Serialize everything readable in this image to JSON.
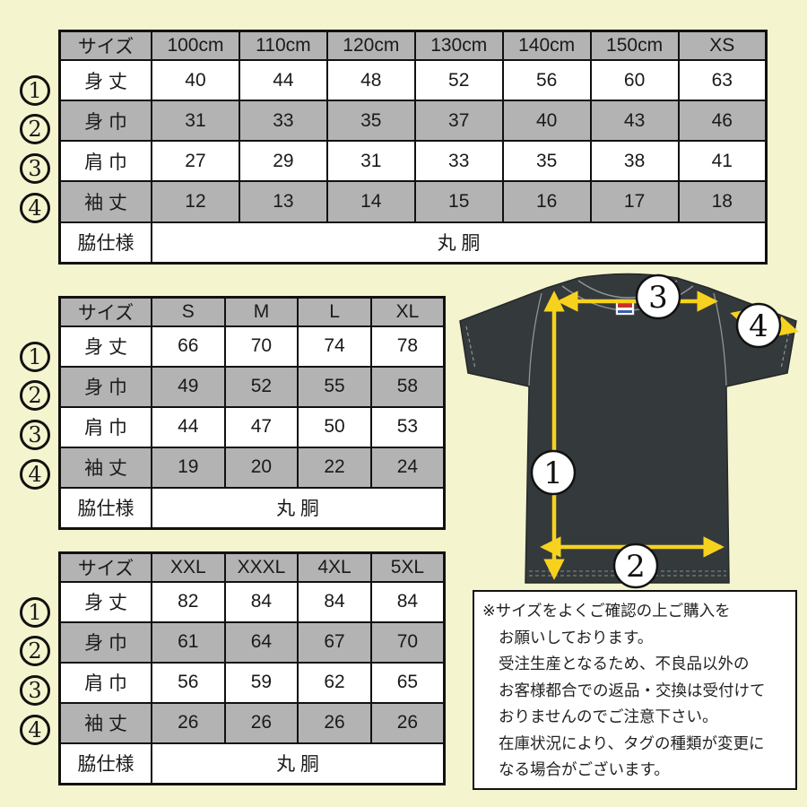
{
  "page": {
    "background": "#f4f4ce"
  },
  "colors": {
    "cell_gray": "#b3b3b3",
    "table_border": "#111111",
    "arrow_yellow": "#f6d21e",
    "shirt_body": "#34393b",
    "seam_gray": "#8f9697"
  },
  "tables": [
    {
      "name": "size-table-kids-xs",
      "header": [
        "サイズ",
        "100cm",
        "110cm",
        "120cm",
        "130cm",
        "140cm",
        "150cm",
        "XS"
      ],
      "rows": [
        {
          "marker": "1",
          "label": "身 丈",
          "values": [
            "40",
            "44",
            "48",
            "52",
            "56",
            "60",
            "63"
          ]
        },
        {
          "marker": "2",
          "label": "身 巾",
          "values": [
            "31",
            "33",
            "35",
            "37",
            "40",
            "43",
            "46"
          ]
        },
        {
          "marker": "3",
          "label": "肩 巾",
          "values": [
            "27",
            "29",
            "31",
            "33",
            "35",
            "38",
            "41"
          ]
        },
        {
          "marker": "4",
          "label": "袖 丈",
          "values": [
            "12",
            "13",
            "14",
            "15",
            "16",
            "17",
            "18"
          ]
        }
      ],
      "footer": {
        "label": "脇仕様",
        "value": "丸 胴"
      }
    },
    {
      "name": "size-table-s-xl",
      "header": [
        "サイズ",
        "S",
        "M",
        "L",
        "XL"
      ],
      "rows": [
        {
          "marker": "1",
          "label": "身 丈",
          "values": [
            "66",
            "70",
            "74",
            "78"
          ]
        },
        {
          "marker": "2",
          "label": "身 巾",
          "values": [
            "49",
            "52",
            "55",
            "58"
          ]
        },
        {
          "marker": "3",
          "label": "肩 巾",
          "values": [
            "44",
            "47",
            "50",
            "53"
          ]
        },
        {
          "marker": "4",
          "label": "袖 丈",
          "values": [
            "19",
            "20",
            "22",
            "24"
          ]
        }
      ],
      "footer": {
        "label": "脇仕様",
        "value": "丸 胴"
      }
    },
    {
      "name": "size-table-xxl-5xl",
      "header": [
        "サイズ",
        "XXL",
        "XXXL",
        "4XL",
        "5XL"
      ],
      "rows": [
        {
          "marker": "1",
          "label": "身 丈",
          "values": [
            "82",
            "84",
            "84",
            "84"
          ]
        },
        {
          "marker": "2",
          "label": "身 巾",
          "values": [
            "61",
            "64",
            "67",
            "70"
          ]
        },
        {
          "marker": "3",
          "label": "肩 巾",
          "values": [
            "56",
            "59",
            "62",
            "65"
          ]
        },
        {
          "marker": "4",
          "label": "袖 丈",
          "values": [
            "26",
            "26",
            "26",
            "26"
          ]
        }
      ],
      "footer": {
        "label": "脇仕様",
        "value": "丸 胴"
      }
    }
  ],
  "diagram": {
    "markers": [
      "1",
      "2",
      "3",
      "4"
    ],
    "marker_meanings": {
      "1": "身丈 (body length)",
      "2": "身巾 (body width)",
      "3": "肩巾 (shoulder width)",
      "4": "袖丈 (sleeve length)"
    }
  },
  "note": {
    "lines": [
      "※サイズをよくご確認の上ご購入を",
      "お願いしております。",
      "受注生産となるため、不良品以外の",
      "お客様都合での返品・交換は受付けて",
      "おりませんのでご注意下さい。",
      "在庫状況により、タグの種類が変更に",
      "なる場合がございます。"
    ]
  }
}
